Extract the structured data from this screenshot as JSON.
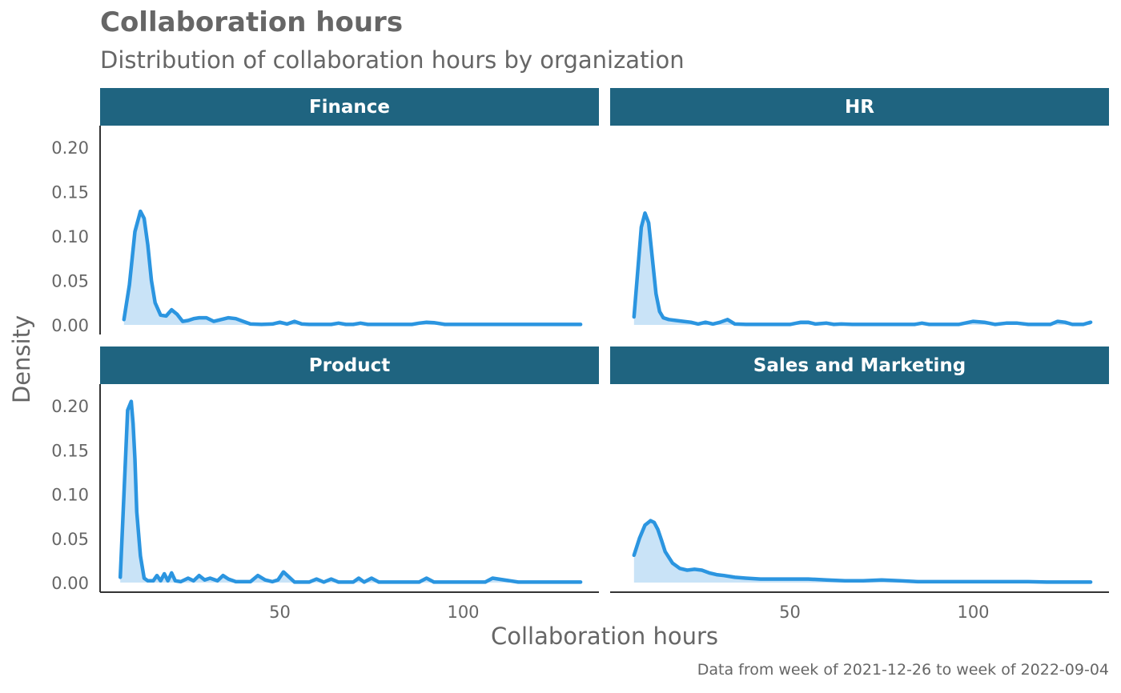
{
  "title": "Collaboration hours",
  "subtitle": "Distribution of collaboration hours by organization",
  "caption": "Data from week of 2021-12-26 to week of 2022-09-04",
  "colors": {
    "strip": "#1f6480",
    "line": "#2b95e0",
    "fill": "#c9e3f7",
    "text": "#666666",
    "axis": "#333333"
  },
  "chart_data": {
    "type": "area",
    "title": "Collaboration hours",
    "subtitle": "Distribution of collaboration hours by organization",
    "xlabel": "Collaboration hours",
    "ylabel": "Density",
    "xlim": [
      1,
      137
    ],
    "ylim": [
      0,
      0.22
    ],
    "x_ticks": [
      50,
      100
    ],
    "y_ticks": [
      0.0,
      0.05,
      0.1,
      0.15,
      0.2
    ],
    "y_tick_labels": [
      "0.00",
      "0.05",
      "0.10",
      "0.15",
      "0.20"
    ],
    "grid": false,
    "facets": [
      {
        "name": "Finance",
        "x": [
          7.5,
          9,
          10.5,
          12,
          13,
          14,
          15,
          16,
          17.5,
          19,
          20.5,
          22,
          23.5,
          25,
          26.5,
          28,
          30,
          32,
          34,
          36,
          38,
          40,
          42,
          45,
          48,
          50,
          52,
          54,
          56,
          58,
          60,
          62,
          64,
          66,
          68,
          70,
          72,
          74,
          80,
          86,
          88,
          90,
          92,
          95,
          100,
          110,
          120,
          132
        ],
        "y": [
          0.006,
          0.045,
          0.105,
          0.128,
          0.12,
          0.09,
          0.05,
          0.025,
          0.011,
          0.01,
          0.017,
          0.012,
          0.004,
          0.005,
          0.007,
          0.008,
          0.008,
          0.004,
          0.006,
          0.008,
          0.007,
          0.004,
          0.001,
          0.0005,
          0.001,
          0.003,
          0.001,
          0.004,
          0.001,
          0.0005,
          0.0005,
          0.0005,
          0.0005,
          0.002,
          0.0005,
          0.0005,
          0.002,
          0.0005,
          0.0005,
          0.0005,
          0.002,
          0.003,
          0.0025,
          0.0005,
          0.0005,
          0.0005,
          0.0005,
          0.0005
        ]
      },
      {
        "name": "HR",
        "x": [
          7.5,
          8.5,
          9.5,
          10.5,
          11.5,
          12.5,
          13.5,
          14.5,
          15.5,
          17,
          19,
          21,
          23,
          25,
          27,
          29,
          31,
          33,
          35,
          38,
          42,
          46,
          50,
          53,
          55,
          57,
          60,
          62,
          64,
          67,
          72,
          80,
          84,
          86,
          88,
          92,
          96,
          100,
          103,
          106,
          109,
          112,
          115,
          118,
          121,
          123,
          125,
          127,
          130,
          132
        ],
        "y": [
          0.009,
          0.06,
          0.11,
          0.126,
          0.115,
          0.075,
          0.035,
          0.015,
          0.008,
          0.006,
          0.005,
          0.004,
          0.003,
          0.001,
          0.003,
          0.001,
          0.003,
          0.006,
          0.001,
          0.0005,
          0.0005,
          0.0005,
          0.0005,
          0.003,
          0.003,
          0.001,
          0.002,
          0.0005,
          0.001,
          0.0005,
          0.0005,
          0.0005,
          0.0005,
          0.002,
          0.0005,
          0.0005,
          0.0005,
          0.004,
          0.003,
          0.0005,
          0.002,
          0.002,
          0.0005,
          0.0005,
          0.0005,
          0.004,
          0.003,
          0.0005,
          0.0005,
          0.003
        ]
      },
      {
        "name": "Product",
        "x": [
          6.5,
          7.5,
          8.5,
          9.5,
          10,
          10.5,
          11,
          12,
          13,
          14,
          15.5,
          16.5,
          17.5,
          18.5,
          19.5,
          20.5,
          21.5,
          23,
          25,
          26.5,
          28,
          29.5,
          31,
          33,
          34.5,
          36,
          38,
          40,
          42,
          44,
          46,
          48,
          49.5,
          51,
          54,
          56,
          58,
          60,
          62,
          64,
          66,
          68,
          70,
          71.5,
          73,
          75,
          77,
          80,
          88,
          90,
          92,
          100,
          104,
          106,
          108,
          115,
          125,
          132
        ],
        "y": [
          0.006,
          0.1,
          0.195,
          0.205,
          0.18,
          0.14,
          0.08,
          0.03,
          0.005,
          0.002,
          0.002,
          0.008,
          0.002,
          0.01,
          0.002,
          0.011,
          0.002,
          0.001,
          0.005,
          0.002,
          0.008,
          0.003,
          0.005,
          0.002,
          0.008,
          0.004,
          0.001,
          0.001,
          0.001,
          0.008,
          0.003,
          0.001,
          0.003,
          0.012,
          0.0005,
          0.0005,
          0.0005,
          0.004,
          0.0005,
          0.004,
          0.0005,
          0.0005,
          0.0005,
          0.005,
          0.0005,
          0.005,
          0.0005,
          0.0005,
          0.0005,
          0.005,
          0.0005,
          0.0005,
          0.0005,
          0.0005,
          0.005,
          0.0005,
          0.0005,
          0.0005
        ]
      },
      {
        "name": "Sales and Marketing",
        "x": [
          7.5,
          9,
          10.5,
          12,
          13,
          14,
          15,
          16,
          18,
          20,
          22,
          24,
          26,
          28,
          30,
          32,
          35,
          38,
          42,
          46,
          50,
          55,
          60,
          65,
          70,
          75,
          80,
          85,
          90,
          95,
          100,
          105,
          110,
          115,
          120,
          125,
          132
        ],
        "y": [
          0.031,
          0.05,
          0.065,
          0.07,
          0.068,
          0.06,
          0.048,
          0.035,
          0.022,
          0.016,
          0.014,
          0.015,
          0.014,
          0.011,
          0.009,
          0.008,
          0.006,
          0.005,
          0.004,
          0.004,
          0.004,
          0.004,
          0.003,
          0.002,
          0.002,
          0.003,
          0.002,
          0.001,
          0.001,
          0.001,
          0.001,
          0.001,
          0.001,
          0.001,
          0.0005,
          0.0005,
          0.0005
        ]
      }
    ]
  }
}
